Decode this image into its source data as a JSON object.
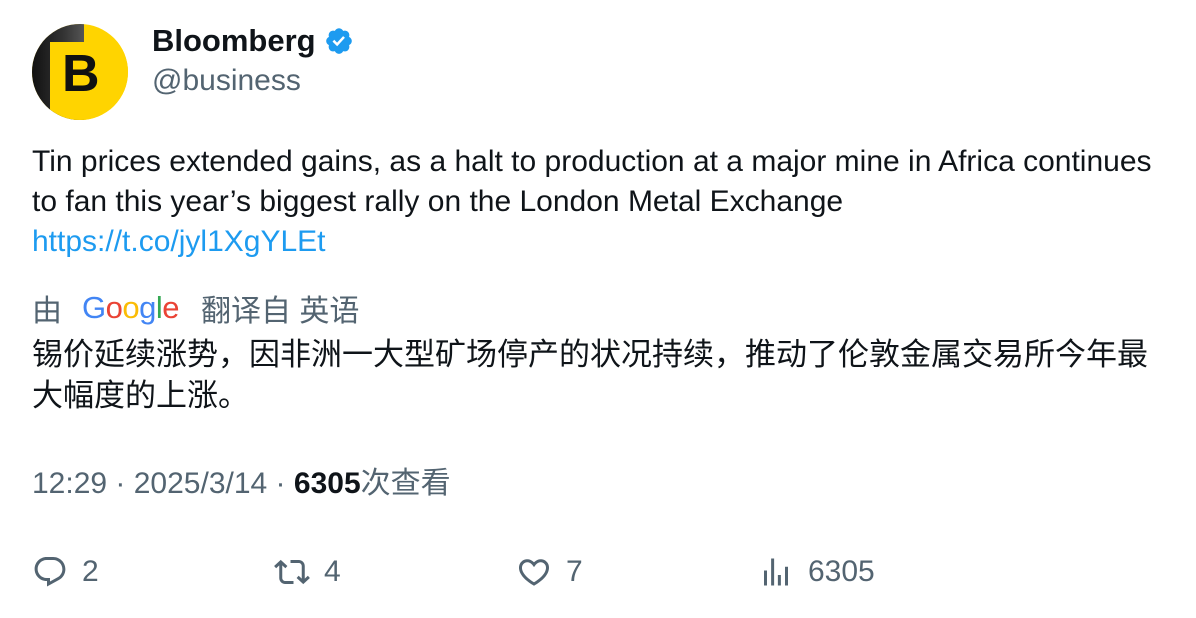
{
  "author": {
    "avatar_letter": "B",
    "display_name": "Bloomberg",
    "handle": "@business",
    "verified_icon": "verified-badge-icon",
    "verified_color": "#1d9bf0"
  },
  "tweet": {
    "text": "Tin prices extended gains, as a halt to production at a major mine in Africa continues to fan this year’s biggest rally on the London Metal Exchange",
    "link": "https://t.co/jyl1XgYLEt"
  },
  "translation": {
    "prefix": "由",
    "provider_logo": [
      "G",
      "o",
      "o",
      "g",
      "l",
      "e"
    ],
    "suffix": "翻译自 英语",
    "text": "锡价延续涨势，因非洲一大型矿场停产的状况持续，推动了伦敦金属交易所今年最大幅度的上涨。"
  },
  "meta": {
    "time": "12:29",
    "separator": " · ",
    "date": "2025/3/14",
    "views_count": "6305",
    "views_label": "次查看"
  },
  "actions": {
    "replies": "2",
    "retweets": "4",
    "likes": "7",
    "views": "6305"
  },
  "colors": {
    "text": "#0f1419",
    "secondary": "#536471",
    "link": "#1d9bf0",
    "avatar_bg": "#ffd400"
  }
}
